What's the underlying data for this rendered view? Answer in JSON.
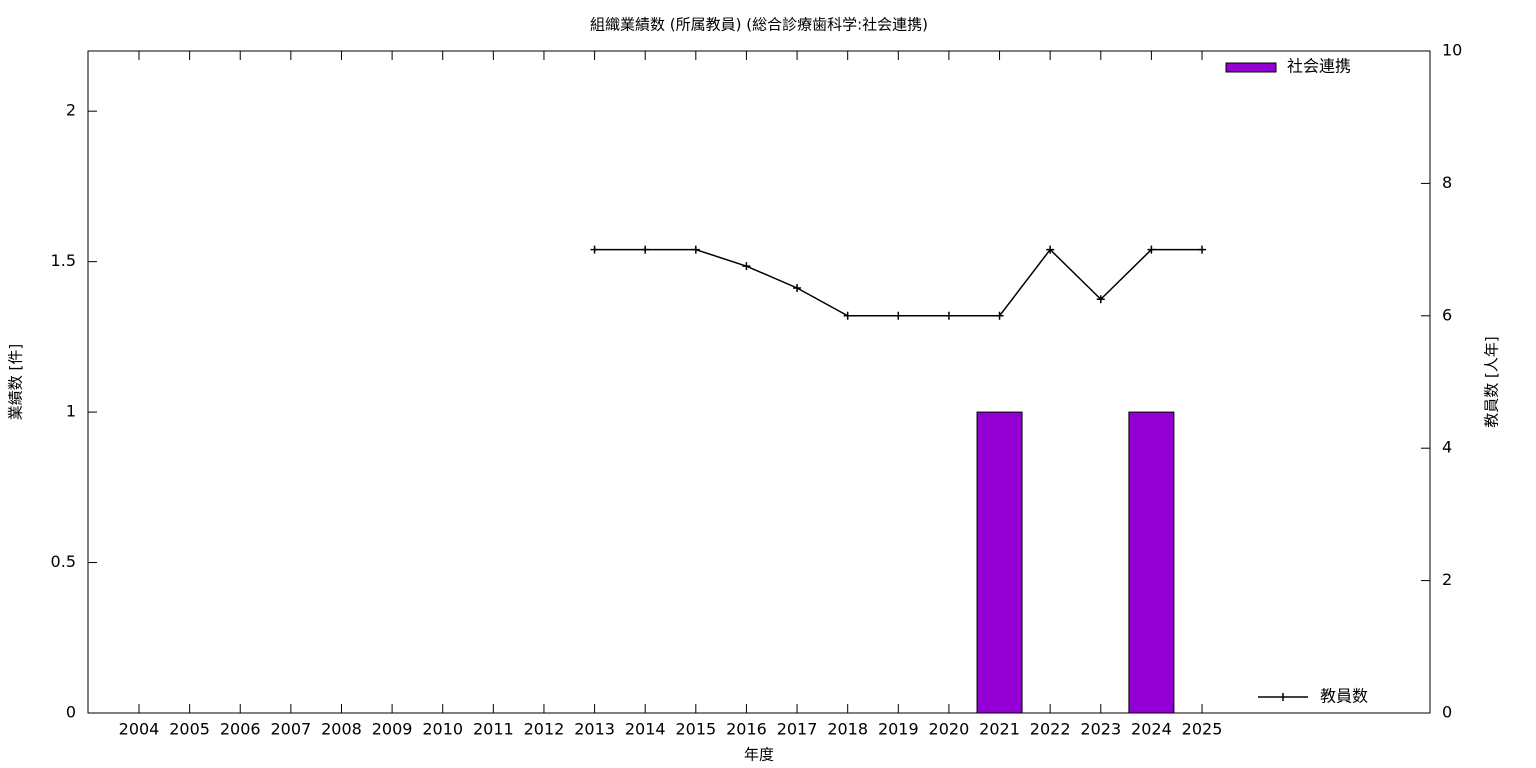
{
  "chart_data": {
    "type": "bar_line",
    "title": "組織業績数 (所属教員) (総合診療歯科学:社会連携)",
    "xlabel": "年度",
    "ylabel": "業績数 [件]",
    "y2label": "教員数 [人年]",
    "categories": [
      "2004",
      "2005",
      "2006",
      "2007",
      "2008",
      "2009",
      "2010",
      "2011",
      "2012",
      "2013",
      "2014",
      "2015",
      "2016",
      "2017",
      "2018",
      "2019",
      "2020",
      "2021",
      "2022",
      "2023",
      "2024",
      "2025"
    ],
    "series": [
      {
        "name": "社会連携",
        "type": "bar",
        "color": "#9400d3",
        "values": [
          0,
          0,
          0,
          0,
          0,
          0,
          0,
          0,
          0,
          0,
          0,
          0,
          0,
          0,
          0,
          0,
          0,
          1,
          0,
          0,
          1,
          0
        ]
      },
      {
        "name": "教員数",
        "type": "line",
        "axis": "y2",
        "color": "#000000",
        "values": [
          null,
          null,
          null,
          null,
          null,
          null,
          null,
          null,
          null,
          7,
          7,
          7,
          6.75,
          6.42,
          6,
          6,
          6,
          6,
          7,
          6.25,
          7,
          7
        ]
      }
    ],
    "ylim": [
      0,
      2.2
    ],
    "yticks": [
      0,
      0.5,
      1,
      1.5,
      2
    ],
    "y2lim": [
      0,
      10
    ],
    "y2ticks": [
      0,
      2,
      4,
      6,
      8,
      10
    ]
  }
}
